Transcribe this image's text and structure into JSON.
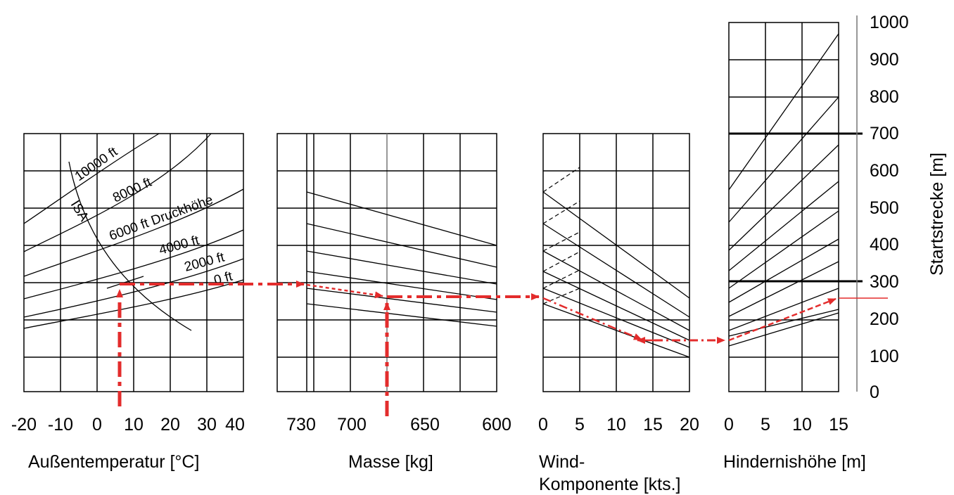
{
  "chart_data": {
    "type": "line",
    "colors": {
      "grid": "#000000",
      "curve": "#000000",
      "path": "#e32c2c"
    },
    "panels": {
      "temperature": {
        "xlabel": "Außentemperatur [°C]",
        "xticks": [
          "-20",
          "-10",
          "0",
          "10",
          "20",
          "30",
          "40"
        ],
        "grid": true,
        "curve_labels": [
          "10000 ft",
          "8000 ft",
          "6000 ft Druckhöhe",
          "4000 ft",
          "2000 ft",
          "0 ft",
          "ISA"
        ]
      },
      "mass": {
        "xlabel": "Masse [kg]",
        "xticks": [
          "730",
          "700",
          "650",
          "600"
        ],
        "grid": true
      },
      "wind": {
        "xlabel_lines": [
          "Wind-",
          "Komponente [kts.]"
        ],
        "xticks": [
          "0",
          "5",
          "10",
          "15",
          "20"
        ],
        "grid": true
      },
      "obstacle": {
        "xlabel": "Hindernishöhe [m]",
        "xticks": [
          "0",
          "5",
          "10",
          "15"
        ],
        "grid": true
      }
    },
    "y_axis": {
      "label": "Startstrecke [m]",
      "ticks": [
        "0",
        "100",
        "200",
        "300",
        "400",
        "500",
        "600",
        "700",
        "800",
        "900",
        "1000"
      ],
      "ylim": [
        0,
        1000
      ]
    },
    "example_path": {
      "temperature_c": 7,
      "mass_kg": 680,
      "wind_kts": 14,
      "obstacle_height_m": 15,
      "result_m": 257
    }
  }
}
